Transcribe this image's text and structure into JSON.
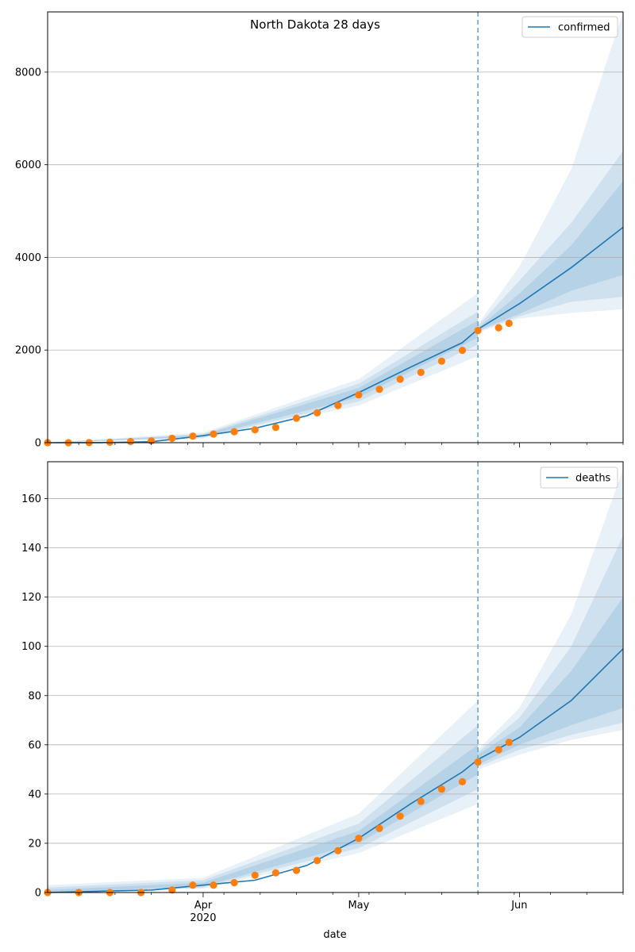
{
  "figure": {
    "title": "North Dakota 28 days",
    "xlabel": "date"
  },
  "chart_data": [
    {
      "type": "line",
      "name": "confirmed-panel",
      "title": "North Dakota 28 days",
      "xlabel": "",
      "ylabel": "",
      "xlim": [
        "2020-03-02",
        "2020-06-21"
      ],
      "ylim": [
        0,
        9300
      ],
      "yticks": [
        0,
        2000,
        4000,
        6000,
        8000
      ],
      "grid": "horizontal",
      "legend": "top-right",
      "forecast_start": "2020-05-24",
      "series": [
        {
          "name": "confirmed",
          "kind": "model-median",
          "color": "#1f77b4",
          "x": [
            "2020-03-02",
            "2020-03-12",
            "2020-03-22",
            "2020-04-01",
            "2020-04-11",
            "2020-04-21",
            "2020-05-01",
            "2020-05-11",
            "2020-05-21",
            "2020-05-24",
            "2020-06-01",
            "2020-06-11",
            "2020-06-21"
          ],
          "values": [
            0,
            2,
            20,
            150,
            310,
            580,
            1080,
            1630,
            2160,
            2450,
            3000,
            3780,
            4650
          ]
        },
        {
          "name": "observed",
          "kind": "observed-points",
          "color": "#ff7f0e",
          "x": [
            "2020-03-02",
            "2020-03-06",
            "2020-03-10",
            "2020-03-14",
            "2020-03-18",
            "2020-03-22",
            "2020-03-26",
            "2020-03-30",
            "2020-04-03",
            "2020-04-07",
            "2020-04-11",
            "2020-04-15",
            "2020-04-19",
            "2020-04-23",
            "2020-04-27",
            "2020-05-01",
            "2020-05-05",
            "2020-05-09",
            "2020-05-13",
            "2020-05-17",
            "2020-05-21",
            "2020-05-24",
            "2020-05-28",
            "2020-05-30"
          ],
          "values": [
            0,
            0,
            1,
            10,
            25,
            40,
            94,
            142,
            186,
            237,
            278,
            331,
            528,
            644,
            803,
            1033,
            1153,
            1371,
            1518,
            1761,
            1994,
            2422,
            2482,
            2577
          ]
        }
      ],
      "bands": [
        {
          "level": "inner",
          "x": [
            "2020-03-02",
            "2020-04-01",
            "2020-05-01",
            "2020-05-24",
            "2020-05-24",
            "2020-06-01",
            "2020-06-11",
            "2020-06-21"
          ],
          "lower": [
            0,
            130,
            980,
            2270,
            2420,
            2780,
            3280,
            3620
          ],
          "upper": [
            0,
            170,
            1180,
            2640,
            2480,
            3220,
            4260,
            5650
          ]
        },
        {
          "level": "middle",
          "x": [
            "2020-03-02",
            "2020-04-01",
            "2020-05-01",
            "2020-05-24",
            "2020-05-24",
            "2020-06-01",
            "2020-06-11",
            "2020-06-21"
          ],
          "lower": [
            0,
            110,
            890,
            2120,
            2400,
            2730,
            3040,
            3150
          ],
          "upper": [
            0,
            190,
            1270,
            2830,
            2520,
            3500,
            4750,
            6300
          ]
        },
        {
          "level": "outer",
          "x": [
            "2020-03-02",
            "2020-04-01",
            "2020-05-01",
            "2020-05-24",
            "2020-05-24",
            "2020-06-01",
            "2020-06-11",
            "2020-06-21"
          ],
          "lower": [
            0,
            90,
            800,
            1870,
            2380,
            2680,
            2800,
            2880
          ],
          "upper": [
            0,
            220,
            1370,
            3230,
            2560,
            3800,
            5900,
            9300
          ]
        }
      ]
    },
    {
      "type": "line",
      "name": "deaths-panel",
      "title": "",
      "xlabel": "date",
      "ylabel": "",
      "xlim": [
        "2020-03-02",
        "2020-06-21"
      ],
      "ylim": [
        0,
        175
      ],
      "yticks": [
        0,
        20,
        40,
        60,
        80,
        100,
        120,
        140,
        160
      ],
      "xticks": [
        {
          "date": "2020-04-01",
          "label": "Apr",
          "sublabel": "2020"
        },
        {
          "date": "2020-05-01",
          "label": "May",
          "sublabel": ""
        },
        {
          "date": "2020-06-01",
          "label": "Jun",
          "sublabel": ""
        }
      ],
      "grid": "horizontal",
      "legend": "top-right",
      "forecast_start": "2020-05-24",
      "series": [
        {
          "name": "deaths",
          "kind": "model-median",
          "color": "#1f77b4",
          "x": [
            "2020-03-02",
            "2020-03-12",
            "2020-03-22",
            "2020-04-01",
            "2020-04-11",
            "2020-04-21",
            "2020-05-01",
            "2020-05-11",
            "2020-05-21",
            "2020-05-24",
            "2020-06-01",
            "2020-06-11",
            "2020-06-21"
          ],
          "values": [
            0,
            0.5,
            1,
            3,
            5,
            11,
            22,
            36,
            49,
            54,
            63,
            78,
            99
          ]
        },
        {
          "name": "observed",
          "kind": "observed-points",
          "color": "#ff7f0e",
          "x": [
            "2020-03-02",
            "2020-03-08",
            "2020-03-14",
            "2020-03-20",
            "2020-03-26",
            "2020-03-30",
            "2020-04-03",
            "2020-04-07",
            "2020-04-11",
            "2020-04-15",
            "2020-04-19",
            "2020-04-23",
            "2020-04-27",
            "2020-05-01",
            "2020-05-05",
            "2020-05-09",
            "2020-05-13",
            "2020-05-17",
            "2020-05-21",
            "2020-05-24",
            "2020-05-28",
            "2020-05-30"
          ],
          "values": [
            0,
            0,
            0,
            0,
            1,
            3,
            3,
            4,
            7,
            8,
            9,
            13,
            17,
            22,
            26,
            31,
            37,
            42,
            45,
            53,
            58,
            61
          ]
        }
      ],
      "bands": [
        {
          "level": "inner",
          "x": [
            "2020-03-02",
            "2020-04-01",
            "2020-05-01",
            "2020-05-24",
            "2020-05-24",
            "2020-06-01",
            "2020-06-11",
            "2020-06-21"
          ],
          "lower": [
            0,
            2.5,
            20,
            48,
            52,
            60,
            68,
            75
          ],
          "upper": [
            1,
            4,
            25,
            60,
            56,
            67,
            90,
            120
          ]
        },
        {
          "level": "middle",
          "x": [
            "2020-03-02",
            "2020-04-01",
            "2020-05-01",
            "2020-05-24",
            "2020-05-24",
            "2020-06-01",
            "2020-06-11",
            "2020-06-21"
          ],
          "lower": [
            0,
            2,
            18,
            42,
            51,
            58,
            64,
            69
          ],
          "upper": [
            2,
            5,
            28,
            68,
            57,
            71,
            100,
            145
          ]
        },
        {
          "level": "outer",
          "x": [
            "2020-03-02",
            "2020-04-01",
            "2020-05-01",
            "2020-05-24",
            "2020-05-24",
            "2020-06-01",
            "2020-06-11",
            "2020-06-21"
          ],
          "lower": [
            0,
            1.5,
            16,
            36,
            50,
            56,
            62,
            66
          ],
          "upper": [
            3,
            6,
            32,
            78,
            58,
            75,
            113,
            172
          ]
        }
      ]
    }
  ]
}
